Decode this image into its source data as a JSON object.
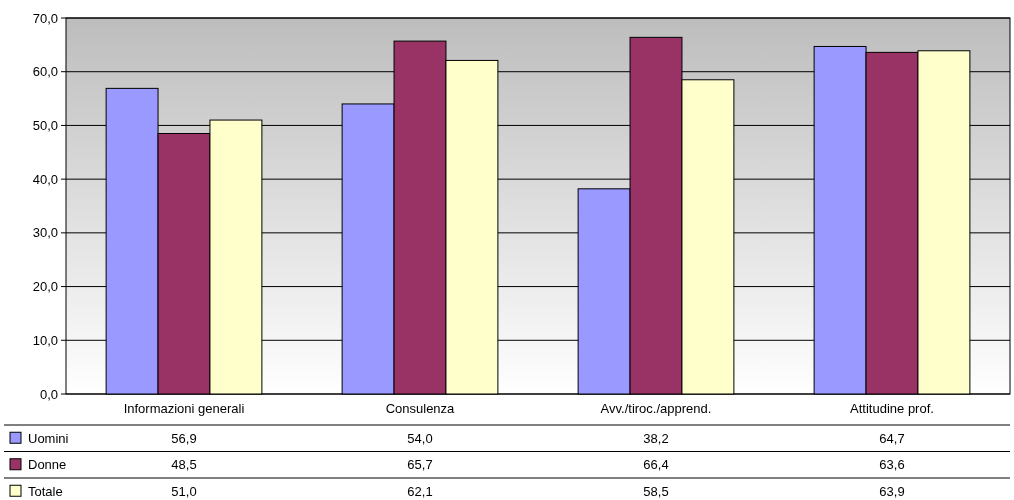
{
  "chart_data": {
    "type": "bar",
    "categories": [
      "Informazioni generali",
      "Consulenza",
      "Avv./tiroc./apprend.",
      "Attitudine prof."
    ],
    "series": [
      {
        "name": "Uomini",
        "color": "#9999ff",
        "values": [
          56.9,
          54.0,
          38.2,
          64.7
        ],
        "value_labels": [
          "56,9",
          "54,0",
          "38,2",
          "64,7"
        ]
      },
      {
        "name": "Donne",
        "color": "#993366",
        "values": [
          48.5,
          65.7,
          66.4,
          63.6
        ],
        "value_labels": [
          "48,5",
          "65,7",
          "66,4",
          "63,6"
        ]
      },
      {
        "name": "Totale",
        "color": "#ffffcc",
        "values": [
          51.0,
          62.1,
          58.5,
          63.9
        ],
        "value_labels": [
          "51,0",
          "62,1",
          "58,5",
          "63,9"
        ]
      }
    ],
    "ylim": [
      0,
      70
    ],
    "yticks": [
      {
        "value": 0,
        "label": "0,0"
      },
      {
        "value": 10,
        "label": "10,0"
      },
      {
        "value": 20,
        "label": "20,0"
      },
      {
        "value": 30,
        "label": "30,0"
      },
      {
        "value": 40,
        "label": "40,0"
      },
      {
        "value": 50,
        "label": "50,0"
      },
      {
        "value": 60,
        "label": "60,0"
      },
      {
        "value": 70,
        "label": "70,0"
      }
    ],
    "grid": "y",
    "legend": "bottom"
  }
}
